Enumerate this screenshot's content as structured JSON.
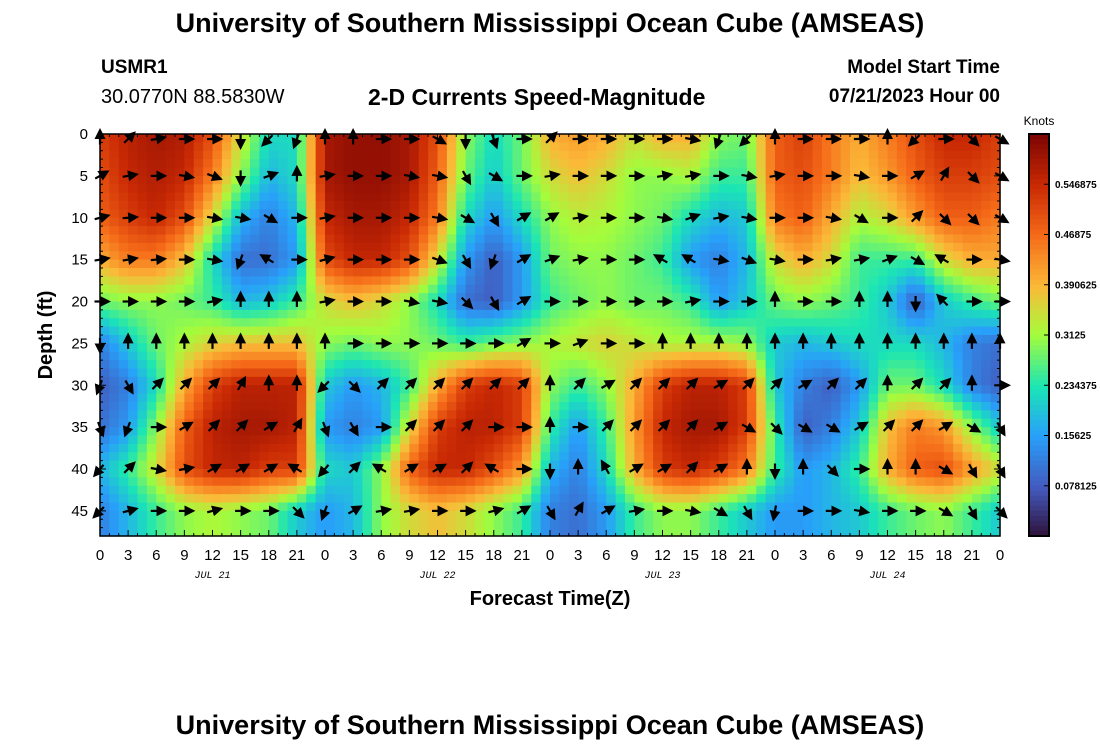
{
  "header": {
    "title": "University of Southern Mississippi Ocean Cube (AMSEAS)",
    "station_id": "USMR1",
    "coordinates": "30.0770N  88.5830W",
    "subtitle": "2-D Currents Speed-Magnitude",
    "model_start_label": "Model Start Time",
    "model_start_value": "07/21/2023 Hour 00"
  },
  "footer": {
    "title": "University of Southern Mississippi Ocean Cube (AMSEAS)"
  },
  "chart_data": {
    "type": "heatmap",
    "title": "2-D Currents Speed-Magnitude",
    "xlabel": "Forecast Time(Z)",
    "ylabel": "Depth (ft)",
    "x_tick_labels": [
      "0",
      "3",
      "6",
      "9",
      "12",
      "15",
      "18",
      "21",
      "0",
      "3",
      "6",
      "9",
      "12",
      "15",
      "18",
      "21",
      "0",
      "3",
      "6",
      "9",
      "12",
      "15",
      "18",
      "21",
      "0",
      "3",
      "6",
      "9",
      "12",
      "15",
      "18",
      "21",
      "0"
    ],
    "date_labels": [
      {
        "text": "JUL 21",
        "hour": 12
      },
      {
        "text": "JUL 22",
        "hour": 36
      },
      {
        "text": "JUL 23",
        "hour": 60
      },
      {
        "text": "JUL 24",
        "hour": 84
      }
    ],
    "xlim": [
      0,
      96
    ],
    "ylim": [
      0,
      48
    ],
    "y_ticks": [
      0,
      5,
      10,
      15,
      20,
      25,
      30,
      35,
      40,
      45
    ],
    "colorbar": {
      "title": "Knots",
      "range": [
        0,
        0.625
      ],
      "tick_labels": [
        "0.546875",
        "0.46875",
        "0.390625",
        "0.3125",
        "0.234375",
        "0.15625",
        "0.078125"
      ],
      "tick_values": [
        0.546875,
        0.46875,
        0.390625,
        0.3125,
        0.234375,
        0.15625,
        0.078125
      ]
    },
    "depths": [
      0,
      5,
      10,
      15,
      20,
      25,
      30,
      35,
      40,
      45
    ],
    "times": [
      0,
      3,
      6,
      9,
      12,
      15,
      18,
      21,
      24,
      27,
      30,
      33,
      36,
      39,
      42,
      45,
      48,
      51,
      54,
      57,
      60,
      63,
      66,
      69,
      72,
      75,
      78,
      81,
      84,
      87,
      90,
      93,
      96
    ],
    "speed_knots": [
      [
        0.52,
        0.56,
        0.58,
        0.57,
        0.5,
        0.35,
        0.22,
        0.22,
        0.58,
        0.6,
        0.6,
        0.58,
        0.5,
        0.3,
        0.22,
        0.28,
        0.4,
        0.42,
        0.4,
        0.35,
        0.4,
        0.4,
        0.3,
        0.28,
        0.48,
        0.52,
        0.45,
        0.4,
        0.45,
        0.5,
        0.55,
        0.55,
        0.52
      ],
      [
        0.5,
        0.55,
        0.57,
        0.55,
        0.45,
        0.3,
        0.18,
        0.22,
        0.58,
        0.6,
        0.6,
        0.58,
        0.48,
        0.28,
        0.2,
        0.28,
        0.35,
        0.38,
        0.35,
        0.3,
        0.3,
        0.32,
        0.25,
        0.25,
        0.48,
        0.5,
        0.45,
        0.38,
        0.42,
        0.48,
        0.52,
        0.52,
        0.5
      ],
      [
        0.48,
        0.52,
        0.55,
        0.5,
        0.35,
        0.18,
        0.12,
        0.18,
        0.55,
        0.58,
        0.58,
        0.55,
        0.45,
        0.22,
        0.15,
        0.22,
        0.3,
        0.33,
        0.32,
        0.3,
        0.28,
        0.22,
        0.18,
        0.2,
        0.45,
        0.48,
        0.4,
        0.32,
        0.35,
        0.42,
        0.48,
        0.48,
        0.45
      ],
      [
        0.4,
        0.45,
        0.45,
        0.38,
        0.22,
        0.1,
        0.1,
        0.15,
        0.5,
        0.55,
        0.55,
        0.5,
        0.35,
        0.15,
        0.08,
        0.15,
        0.28,
        0.3,
        0.3,
        0.28,
        0.25,
        0.15,
        0.12,
        0.18,
        0.35,
        0.4,
        0.35,
        0.25,
        0.25,
        0.25,
        0.35,
        0.4,
        0.4
      ],
      [
        0.28,
        0.3,
        0.3,
        0.28,
        0.25,
        0.18,
        0.2,
        0.25,
        0.35,
        0.38,
        0.35,
        0.3,
        0.22,
        0.1,
        0.08,
        0.15,
        0.25,
        0.28,
        0.3,
        0.28,
        0.28,
        0.25,
        0.15,
        0.2,
        0.28,
        0.3,
        0.28,
        0.25,
        0.2,
        0.08,
        0.2,
        0.25,
        0.28
      ],
      [
        0.12,
        0.2,
        0.28,
        0.32,
        0.36,
        0.38,
        0.38,
        0.38,
        0.3,
        0.28,
        0.3,
        0.3,
        0.28,
        0.25,
        0.28,
        0.3,
        0.32,
        0.34,
        0.36,
        0.34,
        0.32,
        0.32,
        0.32,
        0.3,
        0.2,
        0.18,
        0.2,
        0.22,
        0.22,
        0.22,
        0.18,
        0.12,
        0.1
      ],
      [
        0.08,
        0.12,
        0.22,
        0.4,
        0.52,
        0.56,
        0.56,
        0.56,
        0.2,
        0.15,
        0.18,
        0.25,
        0.4,
        0.52,
        0.55,
        0.52,
        0.3,
        0.25,
        0.3,
        0.4,
        0.52,
        0.56,
        0.56,
        0.52,
        0.2,
        0.12,
        0.08,
        0.15,
        0.28,
        0.28,
        0.22,
        0.12,
        0.08
      ],
      [
        0.1,
        0.15,
        0.3,
        0.48,
        0.56,
        0.58,
        0.58,
        0.56,
        0.15,
        0.12,
        0.15,
        0.35,
        0.52,
        0.56,
        0.56,
        0.52,
        0.25,
        0.15,
        0.25,
        0.42,
        0.55,
        0.58,
        0.58,
        0.52,
        0.25,
        0.08,
        0.12,
        0.2,
        0.38,
        0.45,
        0.42,
        0.3,
        0.2
      ],
      [
        0.18,
        0.25,
        0.35,
        0.5,
        0.55,
        0.56,
        0.52,
        0.52,
        0.22,
        0.2,
        0.3,
        0.48,
        0.55,
        0.55,
        0.5,
        0.42,
        0.18,
        0.12,
        0.22,
        0.4,
        0.52,
        0.55,
        0.52,
        0.45,
        0.25,
        0.15,
        0.18,
        0.25,
        0.4,
        0.48,
        0.5,
        0.42,
        0.35
      ],
      [
        0.12,
        0.18,
        0.25,
        0.3,
        0.32,
        0.3,
        0.28,
        0.2,
        0.15,
        0.18,
        0.3,
        0.35,
        0.38,
        0.35,
        0.3,
        0.25,
        0.12,
        0.1,
        0.15,
        0.25,
        0.3,
        0.3,
        0.25,
        0.2,
        0.15,
        0.15,
        0.18,
        0.2,
        0.25,
        0.28,
        0.3,
        0.25,
        0.2
      ]
    ],
    "vector_angles_deg": [
      [
        0,
        45,
        80,
        90,
        90,
        180,
        225,
        200,
        0,
        0,
        90,
        90,
        120,
        180,
        160,
        90,
        45,
        90,
        90,
        90,
        90,
        100,
        200,
        225,
        0,
        90,
        90,
        90,
        0,
        225,
        90,
        135,
        120
      ],
      [
        60,
        80,
        90,
        100,
        110,
        180,
        70,
        0,
        80,
        90,
        90,
        100,
        100,
        150,
        120,
        90,
        80,
        90,
        90,
        90,
        80,
        80,
        90,
        100,
        80,
        90,
        90,
        100,
        90,
        60,
        30,
        135,
        120
      ],
      [
        75,
        85,
        90,
        90,
        100,
        100,
        120,
        90,
        80,
        90,
        90,
        90,
        100,
        120,
        150,
        60,
        60,
        80,
        90,
        90,
        100,
        70,
        80,
        100,
        90,
        90,
        100,
        120,
        90,
        45,
        135,
        135,
        120
      ],
      [
        80,
        80,
        85,
        90,
        100,
        200,
        300,
        90,
        75,
        90,
        90,
        90,
        110,
        150,
        200,
        60,
        70,
        80,
        90,
        90,
        300,
        300,
        100,
        110,
        100,
        90,
        80,
        80,
        70,
        120,
        300,
        90,
        100
      ],
      [
        90,
        90,
        90,
        90,
        80,
        0,
        0,
        0,
        80,
        90,
        90,
        100,
        100,
        135,
        150,
        60,
        90,
        90,
        90,
        90,
        90,
        80,
        90,
        90,
        0,
        90,
        90,
        0,
        0,
        180,
        315,
        90,
        90
      ],
      [
        180,
        0,
        0,
        0,
        0,
        0,
        0,
        0,
        0,
        90,
        90,
        90,
        90,
        90,
        90,
        60,
        90,
        70,
        90,
        90,
        0,
        0,
        0,
        0,
        0,
        0,
        0,
        0,
        0,
        0,
        0,
        0,
        0
      ],
      [
        200,
        150,
        45,
        45,
        45,
        30,
        0,
        0,
        225,
        135,
        45,
        45,
        45,
        45,
        45,
        45,
        0,
        45,
        60,
        45,
        45,
        45,
        60,
        45,
        45,
        60,
        45,
        45,
        0,
        45,
        45,
        0,
        90
      ],
      [
        160,
        200,
        90,
        60,
        45,
        45,
        60,
        30,
        160,
        150,
        90,
        45,
        45,
        45,
        90,
        90,
        0,
        90,
        45,
        45,
        45,
        45,
        60,
        120,
        135,
        120,
        120,
        60,
        45,
        45,
        60,
        120,
        150
      ],
      [
        220,
        45,
        100,
        80,
        60,
        60,
        60,
        300,
        220,
        45,
        300,
        60,
        60,
        45,
        300,
        90,
        180,
        0,
        330,
        60,
        60,
        45,
        60,
        0,
        180,
        0,
        135,
        90,
        0,
        0,
        120,
        150,
        150
      ],
      [
        225,
        75,
        90,
        90,
        75,
        90,
        90,
        135,
        200,
        60,
        80,
        80,
        90,
        90,
        75,
        60,
        150,
        30,
        60,
        80,
        90,
        100,
        120,
        150,
        190,
        90,
        90,
        100,
        90,
        90,
        120,
        150,
        135
      ]
    ]
  }
}
